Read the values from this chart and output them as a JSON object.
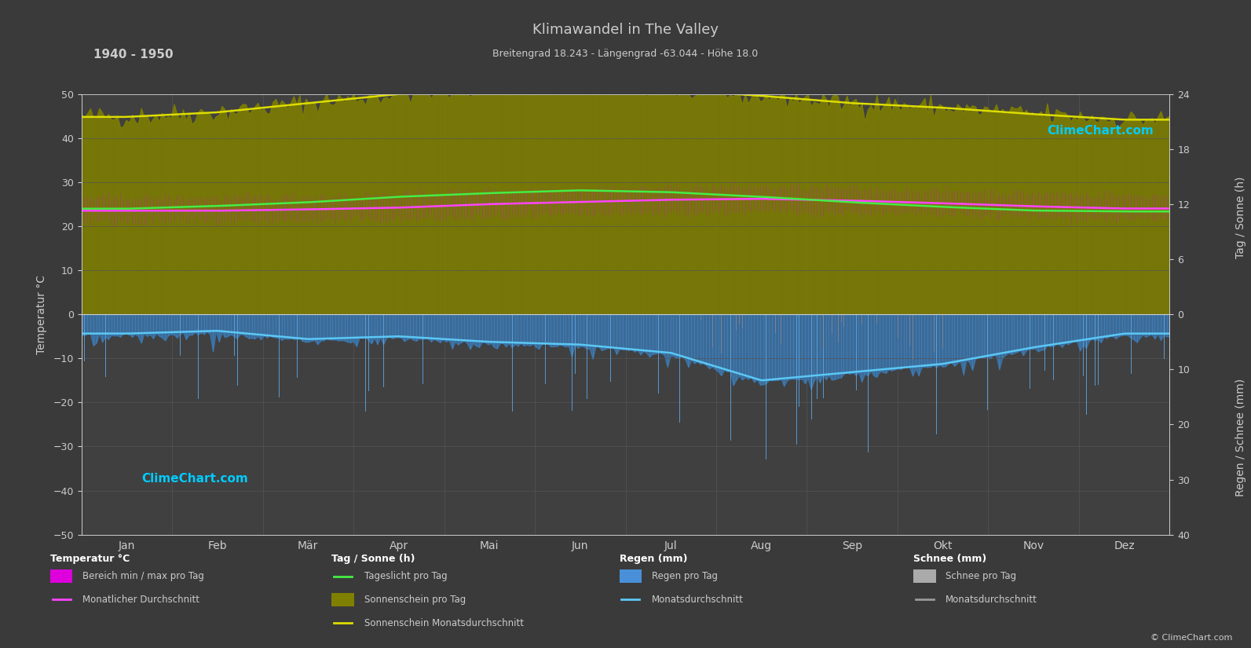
{
  "title": "Klimawandel in The Valley",
  "subtitle": "Breitengrad 18.243 - Längengrad -63.044 - Höhe 18.0",
  "year_range": "1940 - 1950",
  "background_color": "#3a3a3a",
  "plot_bg_color": "#404040",
  "grid_color": "#555555",
  "text_color": "#cccccc",
  "months": [
    "Jan",
    "Feb",
    "Mär",
    "Apr",
    "Mai",
    "Jun",
    "Jul",
    "Aug",
    "Sep",
    "Okt",
    "Nov",
    "Dez"
  ],
  "temp_ylim": [
    -50,
    50
  ],
  "temp_avg": [
    23.5,
    23.5,
    23.8,
    24.2,
    25.0,
    25.5,
    26.0,
    26.2,
    25.8,
    25.2,
    24.5,
    24.0
  ],
  "temp_band_upper": [
    26.5,
    26.5,
    26.8,
    27.2,
    28.0,
    28.5,
    28.8,
    29.0,
    28.5,
    28.0,
    27.5,
    27.0
  ],
  "temp_band_lower": [
    21.0,
    21.0,
    21.2,
    21.5,
    22.0,
    22.5,
    23.0,
    23.2,
    23.0,
    22.5,
    22.0,
    21.5
  ],
  "sunshine_hours_avg": [
    21.5,
    22.0,
    23.0,
    24.0,
    24.8,
    25.2,
    24.5,
    23.8,
    23.0,
    22.5,
    21.8,
    21.2
  ],
  "daylight_hours_avg": [
    11.5,
    11.8,
    12.2,
    12.8,
    13.2,
    13.5,
    13.3,
    12.8,
    12.2,
    11.7,
    11.3,
    11.2
  ],
  "rain_monthly_mm": [
    3.5,
    3.0,
    4.5,
    4.0,
    5.0,
    5.5,
    7.0,
    12.0,
    10.5,
    9.0,
    6.0,
    3.5
  ],
  "sun_scale": 2.0833,
  "rain_scale": 1.25,
  "logo_text": "ClimeChart.com",
  "copyright_text": "© ClimeChart.com",
  "legend_col1_header": "Temperatur °C",
  "legend_col2_header": "Tag / Sonne (h)",
  "legend_col3_header": "Regen (mm)",
  "legend_col4_header": "Schnee (mm)",
  "legend_col1_items": [
    "Bereich min / max pro Tag",
    "Monatlicher Durchschnitt"
  ],
  "legend_col2_items": [
    "Tageslicht pro Tag",
    "Sonnenschein pro Tag",
    "Sonnenschein Monatsdurchschnitt"
  ],
  "legend_col3_items": [
    "Regen pro Tag",
    "Monatsdurchschnitt"
  ],
  "legend_col4_items": [
    "Schnee pro Tag",
    "Monatsdurchschnitt"
  ],
  "left_yaxis_label": "Temperatur °C",
  "right_yaxis_label1": "Tag / Sonne (h)",
  "right_yaxis_label2": "Regen / Schnee (mm)"
}
